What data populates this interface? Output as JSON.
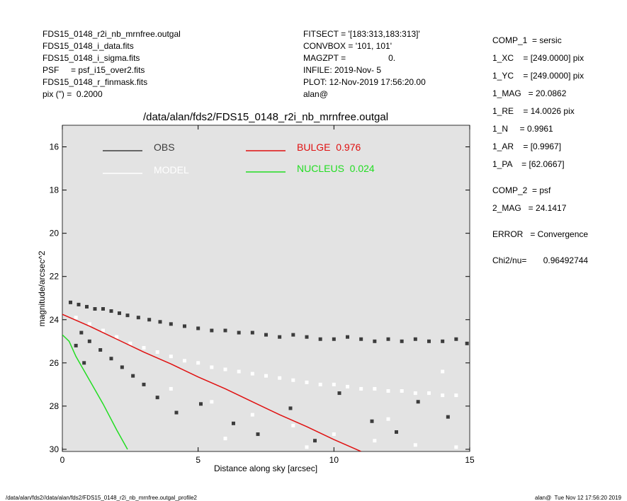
{
  "header": {
    "left": [
      "FDS15_0148_r2i_nb_mrnfree.outgal",
      "FDS15_0148_i_data.fits",
      "FDS15_0148_i_sigma.fits",
      "PSF     = psf_i15_over2.fits",
      "FDS15_0148_r_finmask.fits",
      "pix (\") =  0.2000"
    ],
    "center": [
      "FITSECT = '[183:313,183:313]'",
      "CONVBOX = '101, 101'",
      "MAGZPT =                  0.",
      "INFILE: 2019-Nov- 5",
      "PLOT: 12-Nov-2019 17:56:20.00",
      "alan@"
    ]
  },
  "parameters": [
    "COMP_1  = sersic",
    "1_XC    = [249.0000] pix",
    "1_YC    = [249.0000] pix",
    "1_MAG   = 20.0862",
    "1_RE    = 14.0026 pix",
    "1_N     = 0.9961",
    "1_AR    = [0.9967]",
    "1_PA    = [62.0667]",
    "COMP_2  = psf",
    "2_MAG   = 24.1417",
    "ERROR   = Convergence",
    "Chi2/nu=       0.96492744"
  ],
  "footer": {
    "left": "/data/alan/fds2//data/alan/fds2/FDS15_0148_r2i_nb_mrnfree.outgal_profile2",
    "right": "alan@  Tue Nov 12 17:56:20 2019"
  },
  "chart_data": {
    "type": "scatter",
    "title": "/data/alan/fds2/FDS15_0148_r2i_nb_mrnfree.outgal",
    "x_label": "Distance along sky [arcsec]",
    "y_label": "magnitude/arcsec^2",
    "xlim": [
      0,
      15
    ],
    "ylim": [
      30.1,
      15
    ],
    "xticks": [
      0,
      5,
      10,
      15
    ],
    "yticks": [
      16,
      18,
      20,
      22,
      24,
      26,
      28,
      30
    ],
    "background": "#e3e3e3",
    "series": [
      {
        "name": "OBS",
        "type": "scatter",
        "color": "#3c3c3c",
        "x": [
          0.3,
          0.6,
          0.9,
          1.2,
          1.5,
          1.8,
          2.1,
          2.4,
          2.8,
          3.2,
          3.6,
          4.0,
          4.5,
          5.0,
          5.5,
          6.0,
          6.5,
          7.0,
          7.5,
          8.0,
          8.5,
          9.0,
          9.5,
          10.0,
          10.5,
          11.0,
          11.5,
          12.0,
          12.5,
          13.0,
          13.5,
          14.0,
          14.5,
          14.9,
          0.7,
          1.0,
          1.4,
          1.8,
          2.2,
          2.6,
          3.0,
          3.5,
          4.2,
          5.1,
          6.3,
          7.2,
          8.4,
          9.3,
          10.2,
          11.4,
          12.3,
          13.1,
          14.2,
          0.5,
          0.8
        ],
        "values": [
          23.2,
          23.3,
          23.4,
          23.5,
          23.5,
          23.6,
          23.7,
          23.8,
          23.9,
          24.0,
          24.1,
          24.2,
          24.3,
          24.4,
          24.5,
          24.5,
          24.6,
          24.6,
          24.7,
          24.8,
          24.7,
          24.8,
          24.9,
          24.9,
          24.8,
          24.9,
          25.0,
          24.9,
          25.0,
          24.9,
          25.0,
          25.0,
          24.9,
          25.1,
          24.6,
          25.0,
          25.4,
          25.8,
          26.2,
          26.6,
          27.0,
          27.6,
          28.3,
          27.9,
          28.8,
          29.3,
          28.1,
          29.6,
          27.4,
          28.7,
          29.2,
          27.8,
          28.5,
          25.2,
          26.0
        ]
      },
      {
        "name": "MODEL",
        "type": "scatter",
        "color": "#ffffff",
        "x": [
          0.5,
          1.0,
          1.5,
          2.0,
          2.5,
          3.0,
          3.5,
          4.0,
          4.5,
          5.0,
          5.5,
          6.0,
          6.5,
          7.0,
          7.5,
          8.0,
          8.5,
          9.0,
          9.5,
          10.0,
          10.5,
          11.0,
          11.5,
          12.0,
          12.5,
          13.0,
          13.5,
          14.0,
          14.5,
          4.0,
          5.5,
          7.0,
          8.5,
          10.0,
          11.5,
          13.0,
          14.5,
          6.0,
          9.0,
          12.0,
          14.0
        ],
        "values": [
          23.9,
          24.2,
          24.5,
          24.8,
          25.1,
          25.3,
          25.5,
          25.7,
          25.9,
          26.0,
          26.2,
          26.3,
          26.4,
          26.5,
          26.6,
          26.7,
          26.8,
          26.9,
          27.0,
          27.0,
          27.1,
          27.2,
          27.2,
          27.3,
          27.3,
          27.4,
          27.4,
          27.5,
          27.5,
          27.2,
          27.8,
          28.4,
          28.9,
          29.3,
          29.6,
          29.8,
          29.9,
          29.5,
          29.9,
          28.6,
          26.4
        ]
      },
      {
        "name": "BULGE  0.976",
        "type": "line",
        "color": "#e01010",
        "x": [
          0,
          1,
          2,
          3,
          4,
          5,
          6,
          7,
          8,
          9,
          10,
          11
        ],
        "values": [
          23.75,
          24.3,
          24.9,
          25.5,
          26.05,
          26.65,
          27.2,
          27.8,
          28.4,
          28.95,
          29.55,
          30.1
        ]
      },
      {
        "name": "NUCLEUS  0.024",
        "type": "line",
        "color": "#22dd22",
        "x": [
          0,
          0.25,
          0.5,
          1,
          1.5,
          2,
          2.4
        ],
        "values": [
          24.7,
          25.0,
          25.7,
          26.8,
          27.9,
          29.1,
          30.0
        ]
      }
    ]
  }
}
